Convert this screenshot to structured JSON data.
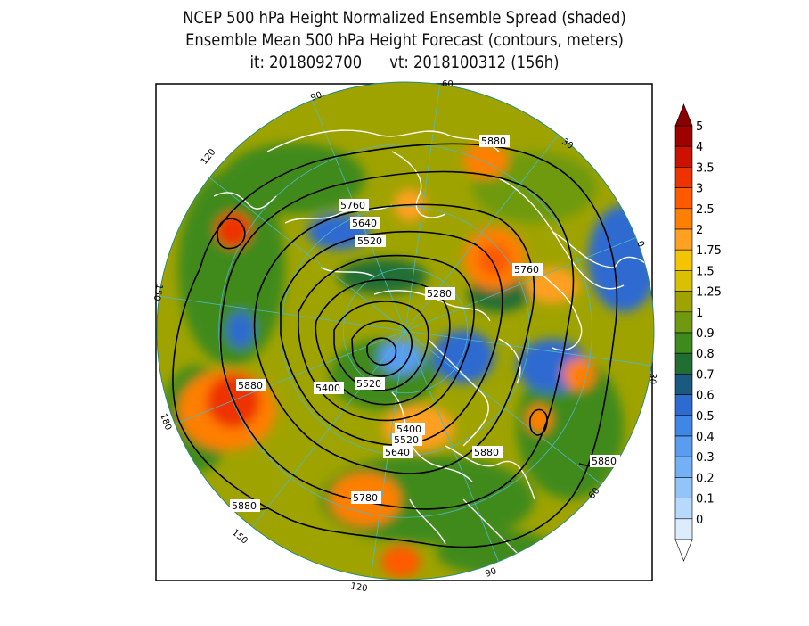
{
  "title": {
    "line1": "NCEP 500 hPa Height Normalized Ensemble Spread (shaded)",
    "line2": "Ensemble Mean 500 hPa Height Forecast (contours, meters)",
    "line3": "it: 2018092700      vt: 2018100312 (156h)"
  },
  "map": {
    "projection": "north-polar-stereographic",
    "longitude_labels": [
      "60",
      "30",
      "0",
      "30",
      "60",
      "90",
      "120",
      "150",
      "180",
      "150",
      "120",
      "90"
    ],
    "contour_labels": [
      "5880",
      "5760",
      "5640",
      "5520",
      "5760",
      "5280",
      "5880",
      "5400",
      "5520",
      "5400",
      "5520",
      "5640",
      "5880",
      "5880",
      "5780",
      "5880"
    ]
  },
  "colorbar": {
    "levels": [
      "5",
      "4",
      "3.5",
      "3",
      "2.5",
      "2",
      "1.75",
      "1.5",
      "1.25",
      "1",
      "0.9",
      "0.8",
      "0.7",
      "0.6",
      "0.5",
      "0.4",
      "0.3",
      "0.2",
      "0.1",
      "0"
    ],
    "colors": [
      "#a00000",
      "#cc1100",
      "#ee3300",
      "#ff5a00",
      "#ff7f00",
      "#ffa020",
      "#f5c400",
      "#d9c000",
      "#9fa300",
      "#6f9a10",
      "#3f8a1c",
      "#206e34",
      "#1a5a80",
      "#2e6bd0",
      "#3f86e6",
      "#5a9cf0",
      "#74b0f5",
      "#92c4f8",
      "#b7d9fb",
      "#dcecfd"
    ],
    "top_color": "#8b0000",
    "bottom_color": "#ffffff"
  }
}
